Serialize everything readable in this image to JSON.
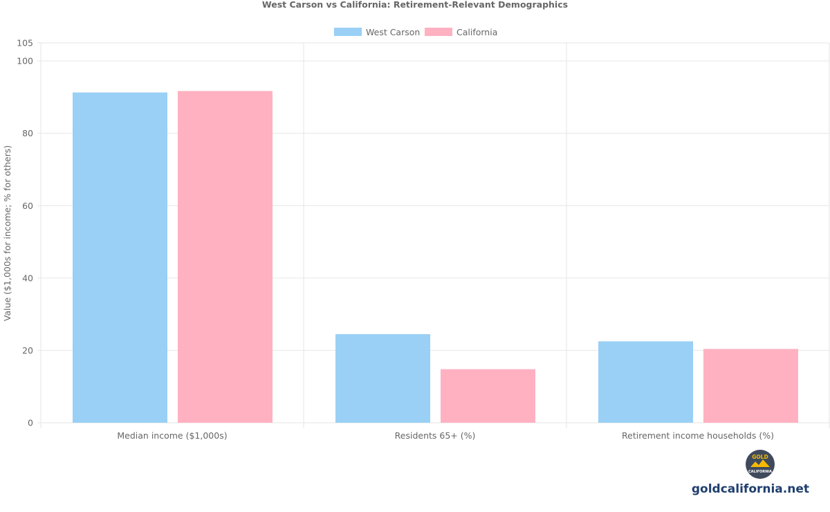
{
  "chart_data": {
    "type": "bar",
    "title": "West Carson vs California: Retirement-Relevant Demographics",
    "xlabel": "",
    "ylabel": "Value ($1,000s for income; % for others)",
    "categories": [
      "Median income ($1,000s)",
      "Residents 65+ (%)",
      "Retirement income households (%)"
    ],
    "series": [
      {
        "name": "West Carson",
        "color": "#9ad0f5",
        "values": [
          91.3,
          24.5,
          22.5
        ]
      },
      {
        "name": "California",
        "color": "#ffb1c1",
        "values": [
          91.7,
          14.8,
          20.4
        ]
      }
    ],
    "ylim": [
      0,
      105
    ],
    "yticks": [
      0,
      20,
      40,
      60,
      80,
      100,
      105
    ],
    "grid": true,
    "legend": "top-center"
  },
  "branding": {
    "logo_top": "GOLD",
    "logo_bottom": "CALIFORNIA",
    "site": "goldcalifornia.net"
  }
}
